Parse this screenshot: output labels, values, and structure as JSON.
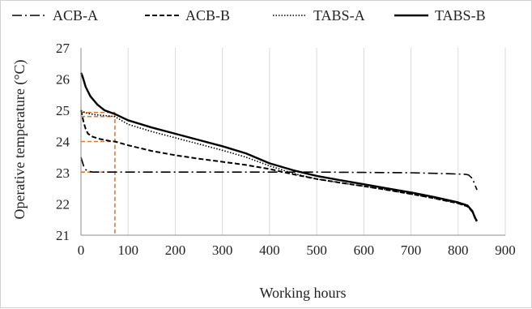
{
  "chart_data": {
    "type": "line",
    "title": "",
    "xlabel": "Working hours",
    "ylabel": "Operative temperature (°C)",
    "xlim": [
      0,
      900
    ],
    "ylim": [
      21,
      27
    ],
    "xticks": [
      0,
      100,
      200,
      300,
      400,
      500,
      600,
      700,
      800,
      900
    ],
    "yticks": [
      21,
      22,
      23,
      24,
      25,
      26,
      27
    ],
    "grid": "vertical",
    "legend_position": "top",
    "series": [
      {
        "name": "ACB-A",
        "style": "dash-dot",
        "color": "#000000",
        "points": [
          [
            0,
            23.5
          ],
          [
            3,
            23.35
          ],
          [
            6,
            23.2
          ],
          [
            10,
            23.1
          ],
          [
            15,
            23.05
          ],
          [
            25,
            23.02
          ],
          [
            50,
            23.02
          ],
          [
            100,
            23.02
          ],
          [
            200,
            23.02
          ],
          [
            300,
            23.02
          ],
          [
            400,
            23.02
          ],
          [
            500,
            23.02
          ],
          [
            600,
            23.01
          ],
          [
            700,
            23.0
          ],
          [
            780,
            22.97
          ],
          [
            815,
            22.95
          ],
          [
            822,
            22.93
          ],
          [
            828,
            22.85
          ],
          [
            832,
            22.75
          ],
          [
            836,
            22.6
          ],
          [
            840,
            22.45
          ]
        ]
      },
      {
        "name": "ACB-B",
        "style": "dashed",
        "color": "#000000",
        "points": [
          [
            0,
            25.0
          ],
          [
            3,
            24.8
          ],
          [
            6,
            24.6
          ],
          [
            10,
            24.4
          ],
          [
            15,
            24.25
          ],
          [
            25,
            24.15
          ],
          [
            40,
            24.08
          ],
          [
            60,
            24.02
          ],
          [
            72,
            24.0
          ],
          [
            100,
            23.88
          ],
          [
            150,
            23.7
          ],
          [
            200,
            23.56
          ],
          [
            250,
            23.45
          ],
          [
            300,
            23.35
          ],
          [
            350,
            23.25
          ],
          [
            400,
            23.12
          ],
          [
            450,
            22.95
          ],
          [
            500,
            22.8
          ],
          [
            550,
            22.68
          ],
          [
            600,
            22.57
          ],
          [
            650,
            22.45
          ],
          [
            700,
            22.32
          ],
          [
            750,
            22.18
          ],
          [
            800,
            22.02
          ],
          [
            820,
            21.92
          ],
          [
            832,
            21.72
          ],
          [
            838,
            21.5
          ]
        ]
      },
      {
        "name": "TABS-A",
        "style": "dotted",
        "color": "#000000",
        "points": [
          [
            0,
            25.0
          ],
          [
            5,
            24.95
          ],
          [
            15,
            24.9
          ],
          [
            30,
            24.86
          ],
          [
            50,
            24.83
          ],
          [
            72,
            24.8
          ],
          [
            100,
            24.55
          ],
          [
            150,
            24.32
          ],
          [
            200,
            24.12
          ],
          [
            250,
            23.92
          ],
          [
            300,
            23.72
          ],
          [
            350,
            23.5
          ],
          [
            400,
            23.22
          ],
          [
            450,
            22.98
          ],
          [
            500,
            22.8
          ],
          [
            550,
            22.68
          ],
          [
            600,
            22.57
          ],
          [
            650,
            22.45
          ],
          [
            700,
            22.32
          ],
          [
            750,
            22.18
          ],
          [
            800,
            22.02
          ],
          [
            820,
            21.92
          ],
          [
            832,
            21.72
          ],
          [
            838,
            21.45
          ]
        ]
      },
      {
        "name": "TABS-B",
        "style": "solid",
        "color": "#000000",
        "points": [
          [
            0,
            26.2
          ],
          [
            3,
            26.1
          ],
          [
            6,
            25.95
          ],
          [
            10,
            25.75
          ],
          [
            20,
            25.45
          ],
          [
            35,
            25.18
          ],
          [
            50,
            25.0
          ],
          [
            72,
            24.88
          ],
          [
            100,
            24.68
          ],
          [
            150,
            24.45
          ],
          [
            200,
            24.25
          ],
          [
            250,
            24.05
          ],
          [
            300,
            23.85
          ],
          [
            350,
            23.62
          ],
          [
            400,
            23.3
          ],
          [
            450,
            23.08
          ],
          [
            500,
            22.9
          ],
          [
            550,
            22.76
          ],
          [
            600,
            22.63
          ],
          [
            650,
            22.5
          ],
          [
            700,
            22.37
          ],
          [
            750,
            22.22
          ],
          [
            800,
            22.05
          ],
          [
            820,
            21.95
          ],
          [
            830,
            21.78
          ],
          [
            836,
            21.55
          ],
          [
            840,
            21.45
          ]
        ]
      }
    ],
    "annotations": {
      "color": "#E87722",
      "style": "dashed",
      "x_marker": 72,
      "y_markers": [
        23.02,
        24.0,
        24.8,
        24.93
      ]
    }
  }
}
